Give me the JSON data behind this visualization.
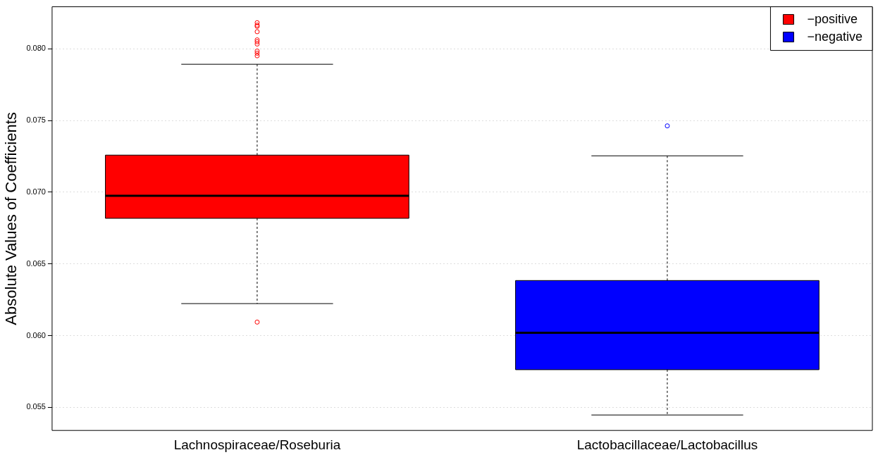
{
  "chart_data": {
    "type": "box",
    "ylabel": "Absolute Values of Coefficients",
    "categories": [
      "Lachnospiraceae/Roseburia",
      "Lactobacillaceae/Lactobacillus"
    ],
    "series": [
      {
        "name": "−positive",
        "color": "#ff0000",
        "boxes": [
          {
            "low": 0.06223,
            "q1": 0.06818,
            "median": 0.06975,
            "q3": 0.07259,
            "high": 0.07893,
            "outliers": [
              0.06094,
              0.07952,
              0.0797,
              0.07985,
              0.08034,
              0.0805,
              0.08063,
              0.0812,
              0.08157,
              0.08166,
              0.08183
            ]
          },
          null
        ]
      },
      {
        "name": "−negative",
        "color": "#0000ff",
        "boxes": [
          null,
          {
            "low": 0.05446,
            "q1": 0.05762,
            "median": 0.0602,
            "q3": 0.06384,
            "high": 0.07254,
            "outliers": [
              0.07463
            ]
          }
        ]
      }
    ],
    "ylim": [
      0.05338,
      0.08294
    ],
    "yticks": [
      0.055,
      {
        "value": 0.06,
        "label": "0.060"
      },
      0.065,
      {
        "value": 0.07,
        "label": "0.070"
      },
      0.075,
      {
        "value": 0.08,
        "label": "0.080"
      }
    ],
    "grid": "y",
    "legend": "top right"
  }
}
